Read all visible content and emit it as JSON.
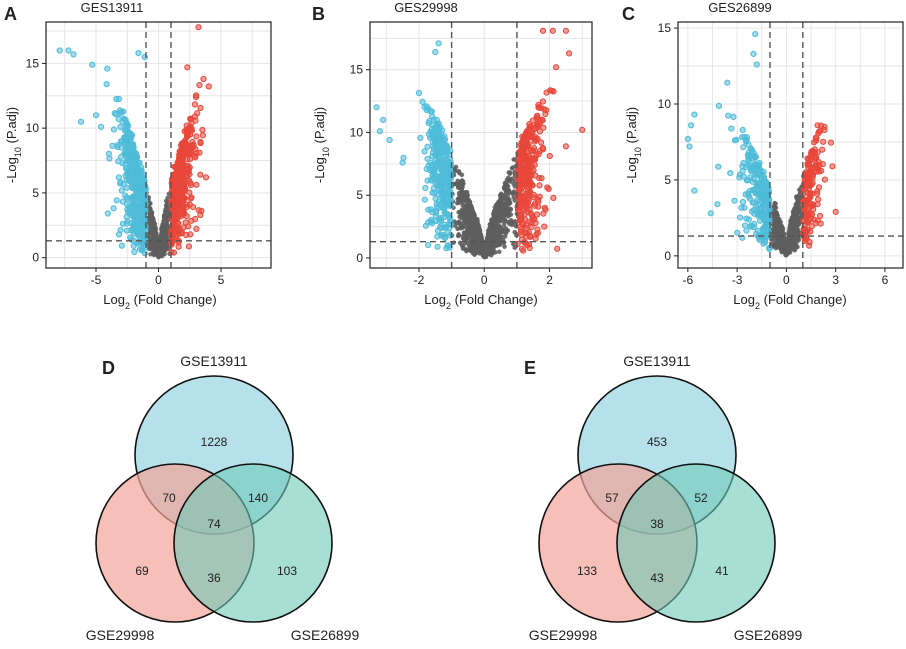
{
  "chart_data": [
    {
      "type": "scatter",
      "panel": "A",
      "title": "GES13911",
      "xlabel_base": "Log",
      "xlabel_sub": "2",
      "xlabel_rest": " (Fold Change)",
      "ylabel_base": "-Log",
      "ylabel_sub": "10",
      "ylabel_rest": " (P.adj)",
      "xlim": [
        -9,
        9
      ],
      "ylim": [
        -0.8,
        18.2
      ],
      "xticks": [
        -5,
        0,
        5
      ],
      "yticks": [
        0,
        5,
        10,
        15
      ],
      "fc_threshold": 1,
      "p_threshold": 1.3,
      "grid": true,
      "cloud": {
        "spread_left": 3.6,
        "spread_right": 3.4,
        "max_y": 13.5,
        "count_grey": 900,
        "count_down": 420,
        "count_up": 380
      },
      "outliers": [
        {
          "x": -7.9,
          "y": 16.0,
          "group": "down"
        },
        {
          "x": -7.2,
          "y": 16.0,
          "group": "down"
        },
        {
          "x": -6.8,
          "y": 15.7,
          "group": "down"
        },
        {
          "x": -5.3,
          "y": 14.9,
          "group": "down"
        },
        {
          "x": -4.1,
          "y": 14.6,
          "group": "down"
        },
        {
          "x": -1.6,
          "y": 15.8,
          "group": "down"
        },
        {
          "x": -1.1,
          "y": 15.5,
          "group": "down"
        },
        {
          "x": -5.0,
          "y": 11.0,
          "group": "down"
        },
        {
          "x": -6.2,
          "y": 10.5,
          "group": "down"
        },
        {
          "x": -4.6,
          "y": 10.1,
          "group": "down"
        },
        {
          "x": 3.2,
          "y": 17.8,
          "group": "up"
        },
        {
          "x": 2.3,
          "y": 14.7,
          "group": "up"
        },
        {
          "x": 3.6,
          "y": 13.8,
          "group": "up"
        },
        {
          "x": 3.0,
          "y": 12.4,
          "group": "up"
        },
        {
          "x": 3.8,
          "y": 6.2,
          "group": "up"
        }
      ]
    },
    {
      "type": "scatter",
      "panel": "B",
      "title": "GES29998",
      "xlabel_base": "Log",
      "xlabel_sub": "2",
      "xlabel_rest": " (Fold Change)",
      "ylabel_base": "-Log",
      "ylabel_sub": "10",
      "ylabel_rest": " (P.adj)",
      "xlim": [
        -3.5,
        3.3
      ],
      "ylim": [
        -0.8,
        18.8
      ],
      "xticks": [
        -2,
        0,
        2
      ],
      "yticks": [
        0,
        5,
        10,
        15
      ],
      "fc_threshold": 1,
      "p_threshold": 1.3,
      "grid": true,
      "cloud": {
        "spread_left": 1.95,
        "spread_right": 1.95,
        "max_y": 13.5,
        "count_grey": 1300,
        "count_down": 300,
        "count_up": 330
      },
      "outliers": [
        {
          "x": -1.4,
          "y": 17.1,
          "group": "down"
        },
        {
          "x": -1.5,
          "y": 16.4,
          "group": "down"
        },
        {
          "x": -3.3,
          "y": 12.0,
          "group": "down"
        },
        {
          "x": -3.1,
          "y": 11.0,
          "group": "down"
        },
        {
          "x": -3.2,
          "y": 10.1,
          "group": "down"
        },
        {
          "x": -2.9,
          "y": 9.4,
          "group": "down"
        },
        {
          "x": -2.5,
          "y": 7.6,
          "group": "down"
        },
        {
          "x": 1.8,
          "y": 18.1,
          "group": "up"
        },
        {
          "x": 2.1,
          "y": 18.1,
          "group": "up"
        },
        {
          "x": 2.5,
          "y": 18.1,
          "group": "up"
        },
        {
          "x": 2.6,
          "y": 16.3,
          "group": "up"
        },
        {
          "x": 2.2,
          "y": 15.2,
          "group": "up"
        },
        {
          "x": 3.0,
          "y": 10.2,
          "group": "up"
        },
        {
          "x": 2.5,
          "y": 8.9,
          "group": "up"
        }
      ]
    },
    {
      "type": "scatter",
      "panel": "C",
      "title": "GES26899",
      "xlabel_base": "Log",
      "xlabel_sub": "2",
      "xlabel_rest": " (Fold Change)",
      "ylabel_base": "-Log",
      "ylabel_sub": "10",
      "ylabel_rest": " (P.adj)",
      "xlim": [
        -6.6,
        7.1
      ],
      "ylim": [
        -0.8,
        15.4
      ],
      "xticks": [
        -6,
        -3,
        0,
        3,
        6
      ],
      "yticks": [
        0,
        5,
        10,
        15
      ],
      "fc_threshold": 1,
      "p_threshold": 1.3,
      "grid": true,
      "cloud": {
        "spread_left": 3.2,
        "spread_right": 2.4,
        "max_y": 9.5,
        "count_grey": 900,
        "count_down": 260,
        "count_up": 170
      },
      "outliers": [
        {
          "x": -1.9,
          "y": 14.6,
          "group": "down"
        },
        {
          "x": -2.0,
          "y": 13.3,
          "group": "down"
        },
        {
          "x": -1.8,
          "y": 12.6,
          "group": "down"
        },
        {
          "x": -3.6,
          "y": 11.4,
          "group": "down"
        },
        {
          "x": -5.6,
          "y": 9.3,
          "group": "down"
        },
        {
          "x": -5.8,
          "y": 8.6,
          "group": "down"
        },
        {
          "x": -6.0,
          "y": 7.7,
          "group": "down"
        },
        {
          "x": -5.9,
          "y": 7.2,
          "group": "down"
        },
        {
          "x": -5.6,
          "y": 4.3,
          "group": "down"
        },
        {
          "x": -4.6,
          "y": 2.8,
          "group": "down"
        },
        {
          "x": -4.2,
          "y": 3.4,
          "group": "down"
        },
        {
          "x": 2.8,
          "y": 5.9,
          "group": "up"
        },
        {
          "x": 3.0,
          "y": 2.9,
          "group": "up"
        },
        {
          "x": 1.9,
          "y": 8.6,
          "group": "up"
        }
      ]
    },
    {
      "type": "venn",
      "panel": "D",
      "sets": [
        "GSE13911",
        "GSE29998",
        "GSE26899"
      ],
      "regions": {
        "a_only": "1228",
        "ab": "70",
        "ac": "140",
        "abc": "74",
        "b_only": "69",
        "bc": "36",
        "c_only": "103"
      }
    },
    {
      "type": "venn",
      "panel": "E",
      "sets": [
        "GSE13911",
        "GSE29998",
        "GSE26899"
      ],
      "regions": {
        "a_only": "453",
        "ab": "57",
        "ac": "52",
        "abc": "38",
        "b_only": "133",
        "bc": "43",
        "c_only": "41"
      }
    }
  ],
  "colors": {
    "down": "#4fbcd9",
    "up": "#e8473a",
    "grey": "#5e5e5e",
    "venn_a": "#a9dce8",
    "venn_b": "#f2a49a",
    "venn_c": "#6ec9b8",
    "grid": "#e6e6e6"
  }
}
